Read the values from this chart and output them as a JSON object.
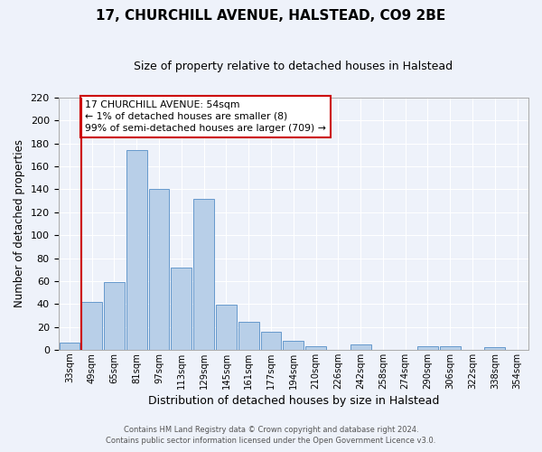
{
  "title": "17, CHURCHILL AVENUE, HALSTEAD, CO9 2BE",
  "subtitle": "Size of property relative to detached houses in Halstead",
  "xlabel": "Distribution of detached houses by size in Halstead",
  "ylabel": "Number of detached properties",
  "bin_labels": [
    "33sqm",
    "49sqm",
    "65sqm",
    "81sqm",
    "97sqm",
    "113sqm",
    "129sqm",
    "145sqm",
    "161sqm",
    "177sqm",
    "194sqm",
    "210sqm",
    "226sqm",
    "242sqm",
    "258sqm",
    "274sqm",
    "290sqm",
    "306sqm",
    "322sqm",
    "338sqm",
    "354sqm"
  ],
  "bar_heights": [
    6,
    42,
    59,
    174,
    140,
    72,
    132,
    39,
    24,
    16,
    8,
    3,
    0,
    5,
    0,
    0,
    3,
    3,
    0,
    2,
    0
  ],
  "bar_color": "#b8cfe8",
  "bar_edge_color": "#6699cc",
  "background_color": "#eef2fa",
  "grid_color": "#ffffff",
  "ylim": [
    0,
    220
  ],
  "yticks": [
    0,
    20,
    40,
    60,
    80,
    100,
    120,
    140,
    160,
    180,
    200,
    220
  ],
  "vline_x_bin": 1,
  "vline_color": "#cc0000",
  "annotation_text": "17 CHURCHILL AVENUE: 54sqm\n← 1% of detached houses are smaller (8)\n99% of semi-detached houses are larger (709) →",
  "annotation_box_color": "#ffffff",
  "annotation_box_edge_color": "#cc0000",
  "footer_line1": "Contains HM Land Registry data © Crown copyright and database right 2024.",
  "footer_line2": "Contains public sector information licensed under the Open Government Licence v3.0."
}
